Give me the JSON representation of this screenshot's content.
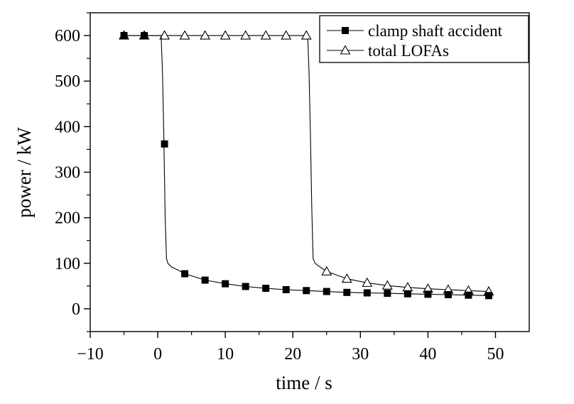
{
  "chart_data": {
    "type": "line",
    "title": "",
    "xlabel": "time / s",
    "ylabel": "power / kW",
    "xlim": [
      -10,
      55
    ],
    "ylim": [
      -50,
      650
    ],
    "xticks": [
      -10,
      0,
      10,
      20,
      30,
      40,
      50
    ],
    "yticks": [
      0,
      100,
      200,
      300,
      400,
      500,
      600
    ],
    "grid": false,
    "legend_position": "top-right",
    "series": [
      {
        "name": "clamp shaft accident",
        "marker": "filled-square",
        "color": "#000000",
        "markers": {
          "x": [
            -5,
            -2,
            1,
            4,
            7,
            10,
            13,
            16,
            19,
            22,
            25,
            28,
            31,
            34,
            37,
            40,
            43,
            46,
            49
          ],
          "y": [
            600,
            600,
            362,
            77,
            63,
            55,
            49,
            45,
            42,
            40,
            38,
            36,
            35,
            34,
            33,
            32,
            31,
            30,
            29
          ]
        },
        "curve": {
          "x": [
            -5,
            0.5,
            0.7,
            0.9,
            1.1,
            1.3,
            1.5,
            2,
            3,
            4,
            7,
            10,
            13,
            16,
            19,
            22,
            25,
            28,
            31,
            34,
            37,
            40,
            43,
            46,
            49
          ],
          "y": [
            600,
            600,
            520,
            380,
            200,
            110,
            100,
            92,
            85,
            77,
            63,
            55,
            49,
            45,
            42,
            40,
            38,
            36,
            35,
            34,
            33,
            32,
            31,
            30,
            29
          ]
        }
      },
      {
        "name": "total LOFAs",
        "marker": "open-triangle",
        "color": "#000000",
        "markers": {
          "x": [
            -5,
            -2,
            1,
            4,
            7,
            10,
            13,
            16,
            19,
            22,
            25,
            28,
            31,
            34,
            37,
            40,
            43,
            46,
            49
          ],
          "y": [
            600,
            600,
            600,
            600,
            600,
            600,
            600,
            600,
            600,
            600,
            82,
            66,
            57,
            51,
            47,
            44,
            42,
            40,
            38
          ]
        },
        "curve": {
          "x": [
            -5,
            22.2,
            22.4,
            22.6,
            22.8,
            23.0,
            23.3,
            24,
            25,
            28,
            31,
            34,
            37,
            40,
            43,
            46,
            49
          ],
          "y": [
            600,
            600,
            520,
            380,
            220,
            110,
            100,
            92,
            82,
            66,
            57,
            51,
            47,
            44,
            42,
            40,
            38
          ]
        }
      }
    ]
  }
}
